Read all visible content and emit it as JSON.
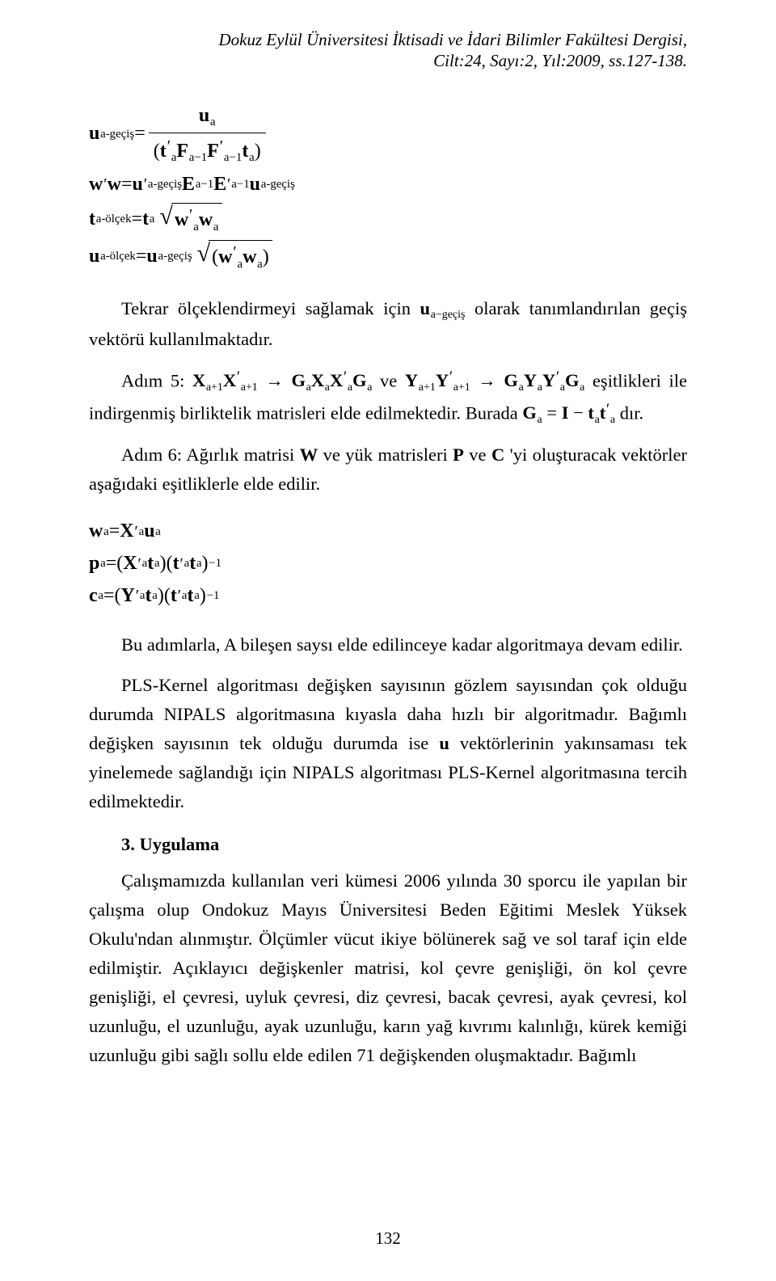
{
  "header": {
    "line1": "Dokuz Eylül Üniversitesi İktisadi ve İdari Bilimler Fakültesi Dergisi,",
    "line2": "Cilt:24, Sayı:2, Yıl:2009, ss.127-138."
  },
  "eq1": {
    "lhs_u": "u",
    "lhs_sub": "a-geçiş",
    "eq": " = ",
    "num_u": "u",
    "num_sub": "a",
    "den_open": "(",
    "den_t": "t",
    "den_prime": "′",
    "den_suba": "a",
    "den_F": "F",
    "den_sub_a1": "a−1",
    "den_Fp": "F",
    "den_t2": "t",
    "den_close": ")"
  },
  "eq2": {
    "w": "w",
    "prime": "′",
    "eq": " = ",
    "u": "u",
    "sub_ag": "a-geçiş",
    "E": "E",
    "sub_a1": "a−1"
  },
  "eq3": {
    "t": "t",
    "sub_ao": "a-ölçek",
    "eq": " = ",
    "ta": "t",
    "sub_a": "a",
    "w": "w",
    "prime": "′"
  },
  "eq4": {
    "u": "u",
    "sub_ao": "a-ölçek",
    "eq": " = ",
    "u2": "u",
    "sub_ag": "a-geçiş",
    "open": "(",
    "w": "w",
    "sub_a": "a",
    "prime": "′",
    "close": ")"
  },
  "para1_a": "Tekrar ölçeklendirmeyi sağlamak için ",
  "para1_math": "u_{a−geçiş}",
  "inline_u": "u",
  "inline_sub_ag": "a−geçiş",
  "para1_b": " olarak tanımlandırılan geçiş vektörü kullanılmaktadır.",
  "para2_a": "Adım 5: ",
  "p2_X": "X",
  "p2_sub_ap1": "a+1",
  "p2_prime": "′",
  "p2_arrow": " → ",
  "p2_G": "G",
  "p2_sub_a": "a",
  "p2_and": " ve ",
  "p2_Y": "Y",
  "para2_b": " eşitlikleri ile indirgenmiş birliktelik matrisleri elde edilmektedir. Burada ",
  "p2_eqtext": " = ",
  "p2_I": "I",
  "p2_minus": " − ",
  "p2_t": "t",
  "para2_c": " dır.",
  "para3_a": "Adım 6: Ağırlık matrisi ",
  "p3_W": "W",
  "para3_b": " ve yük matrisleri ",
  "p3_P": "P",
  "para3_c": " ve ",
  "p3_C": "C",
  "para3_d": " 'yi oluşturacak vektörler aşağıdaki eşitliklerle elde edilir.",
  "eq5": {
    "w": "w",
    "sub_a": "a",
    "eq": " = ",
    "X": "X",
    "prime": "′",
    "u": "u"
  },
  "eq6": {
    "p": "p",
    "sub_a": "a",
    "eq": " = ",
    "open": "(",
    "X": "X",
    "prime": "′",
    "t": "t",
    "close": ")",
    "sup_m1": "−1"
  },
  "eq7": {
    "c": "c",
    "sub_a": "a",
    "eq": " = ",
    "open": "(",
    "Y": "Y",
    "prime": "′",
    "t": "t",
    "close": ")",
    "sup_m1": "−1"
  },
  "para4": "Bu adımlarla, A bileşen saysı elde edilinceye kadar algoritmaya devam edilir.",
  "para5_a": "PLS-Kernel algoritması değişken sayısının gözlem sayısından çok olduğu durumda NIPALS algoritmasına kıyasla daha hızlı bir algoritmadır. Bağımlı değişken sayısının tek olduğu durumda ise ",
  "p5_u": "u",
  "para5_b": " vektörlerinin yakınsaması tek yinelemede sağlandığı için NIPALS algoritması PLS-Kernel algoritmasına tercih edilmektedir.",
  "section3": "3.  Uygulama",
  "para6": "Çalışmamızda kullanılan veri kümesi 2006 yılında 30 sporcu ile yapılan bir çalışma olup Ondokuz Mayıs Üniversitesi Beden Eğitimi Meslek Yüksek Okulu'ndan alınmıştır. Ölçümler vücut ikiye bölünerek sağ ve sol taraf için elde edilmiştir. Açıklayıcı değişkenler matrisi, kol çevre genişliği, ön kol çevre genişliği, el çevresi, uyluk çevresi, diz çevresi, bacak çevresi, ayak çevresi, kol uzunluğu, el uzunluğu, ayak uzunluğu, karın yağ kıvrımı kalınlığı, kürek kemiği uzunluğu gibi sağlı sollu elde edilen 71 değişkenden oluşmaktadır. Bağımlı",
  "page_number": "132"
}
